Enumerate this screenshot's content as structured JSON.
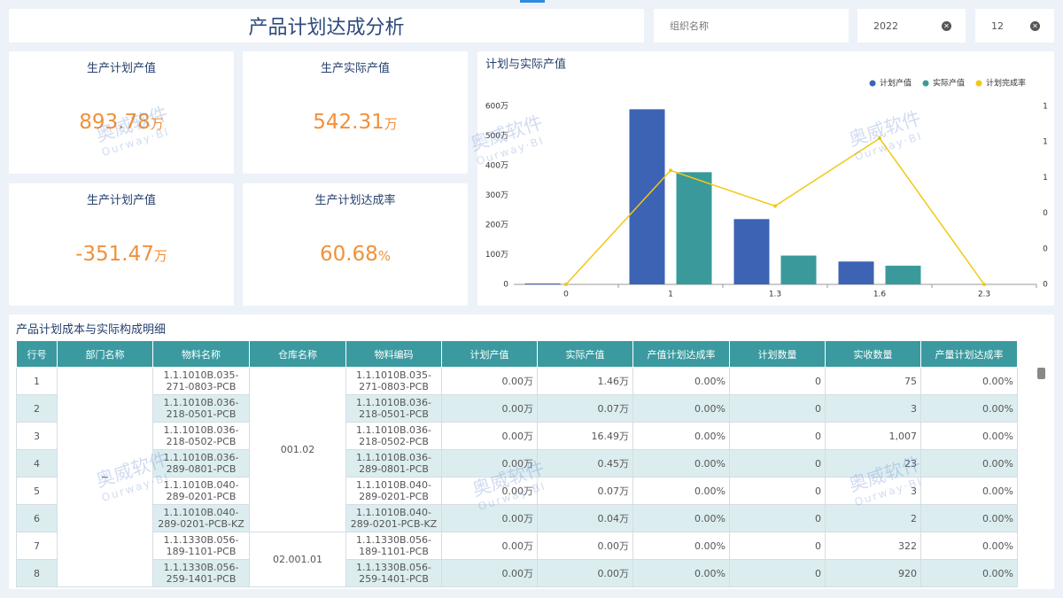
{
  "header": {
    "title": "产品计划达成分析"
  },
  "filters": {
    "organization_placeholder": "组织名称",
    "year": "2022",
    "month": "12"
  },
  "kpis": [
    {
      "label": "生产计划产值",
      "value": 893.78,
      "unit": "万"
    },
    {
      "label": "生产实际产值",
      "value": 542.31,
      "unit": "万"
    },
    {
      "label": "生产计划产值",
      "value": -351.47,
      "unit": "万"
    },
    {
      "label": "生产计划达成率",
      "value": 60.68,
      "unit": "%"
    }
  ],
  "watermark": {
    "text": "奥威软件",
    "subtext": "Ourway·BI"
  },
  "chart_data": {
    "type": "bar",
    "title": "计划与实际产值",
    "categories": [
      "0",
      "1",
      "1.3",
      "1.6",
      "2.3"
    ],
    "series": [
      {
        "name": "计划产值",
        "color": "#3c63b4",
        "values": [
          3,
          590,
          220,
          77,
          0
        ]
      },
      {
        "name": "实际产值",
        "color": "#3a9a9b",
        "values": [
          0,
          378,
          97,
          63,
          0
        ]
      },
      {
        "name": "计划完成率",
        "color": "#f2c811",
        "type": "line",
        "axis": "y2",
        "values": [
          0,
          0.64,
          0.44,
          0.82,
          0
        ]
      }
    ],
    "ylim": [
      0,
      600
    ],
    "yticks": [
      0,
      {
        "value": 100,
        "label": "100万"
      },
      {
        "value": 200,
        "label": "200万"
      },
      {
        "value": 300,
        "label": "300万"
      },
      {
        "value": 400,
        "label": "400万"
      },
      {
        "value": 500,
        "label": "500万"
      },
      {
        "value": 600,
        "label": "600万"
      }
    ],
    "y2lim": [
      0,
      1
    ],
    "y2ticks": [
      0,
      {
        "value": 0.2,
        "label": "0"
      },
      {
        "value": 0.4,
        "label": "0"
      },
      {
        "value": 0.6,
        "label": "1"
      },
      {
        "value": 0.8,
        "label": "1"
      },
      1
    ],
    "legend": "top-right",
    "grid": false
  },
  "table": {
    "title": "产品计划成本与实际构成明细",
    "columns": [
      "行号",
      "部门名称",
      "物料名称",
      "仓库名称",
      "物料编码",
      "计划产值",
      "实际产值",
      "产值计划达成率",
      "计划数量",
      "实收数量",
      "产量计划达成率"
    ],
    "rows": [
      [
        "1",
        "~",
        "1.1.1010B.035-271-0803-PCB",
        "001.02",
        "1.1.1010B.035-271-0803-PCB",
        "0.00万",
        "1.46万",
        "0.00%",
        "0",
        "75",
        "0.00%"
      ],
      [
        "2",
        null,
        "1.1.1010B.036-218-0501-PCB",
        null,
        "1.1.1010B.036-218-0501-PCB",
        "0.00万",
        "0.07万",
        "0.00%",
        "0",
        "3",
        "0.00%"
      ],
      [
        "3",
        null,
        "1.1.1010B.036-218-0502-PCB",
        null,
        "1.1.1010B.036-218-0502-PCB",
        "0.00万",
        "16.49万",
        "0.00%",
        "0",
        "1,007",
        "0.00%"
      ],
      [
        "4",
        null,
        "1.1.1010B.036-289-0801-PCB",
        null,
        "1.1.1010B.036-289-0801-PCB",
        "0.00万",
        "0.45万",
        "0.00%",
        "0",
        "23",
        "0.00%"
      ],
      [
        "5",
        null,
        "1.1.1010B.040-289-0201-PCB",
        null,
        "1.1.1010B.040-289-0201-PCB",
        "0.00万",
        "0.07万",
        "0.00%",
        "0",
        "3",
        "0.00%"
      ],
      [
        "6",
        null,
        "1.1.1010B.040-289-0201-PCB-KZ",
        null,
        "1.1.1010B.040-289-0201-PCB-KZ",
        "0.00万",
        "0.04万",
        "0.00%",
        "0",
        "2",
        "0.00%"
      ],
      [
        "7",
        null,
        "1.1.1330B.056-189-1101-PCB",
        "02.001.01",
        "1.1.1330B.056-189-1101-PCB",
        "0.00万",
        "0.00万",
        "0.00%",
        "0",
        "322",
        "0.00%"
      ],
      [
        "8",
        null,
        "1.1.1330B.056-259-1401-PCB",
        null,
        "1.1.1330B.056-259-1401-PCB",
        "0.00万",
        "0.00万",
        "0.00%",
        "0",
        "920",
        "0.00%"
      ]
    ]
  }
}
